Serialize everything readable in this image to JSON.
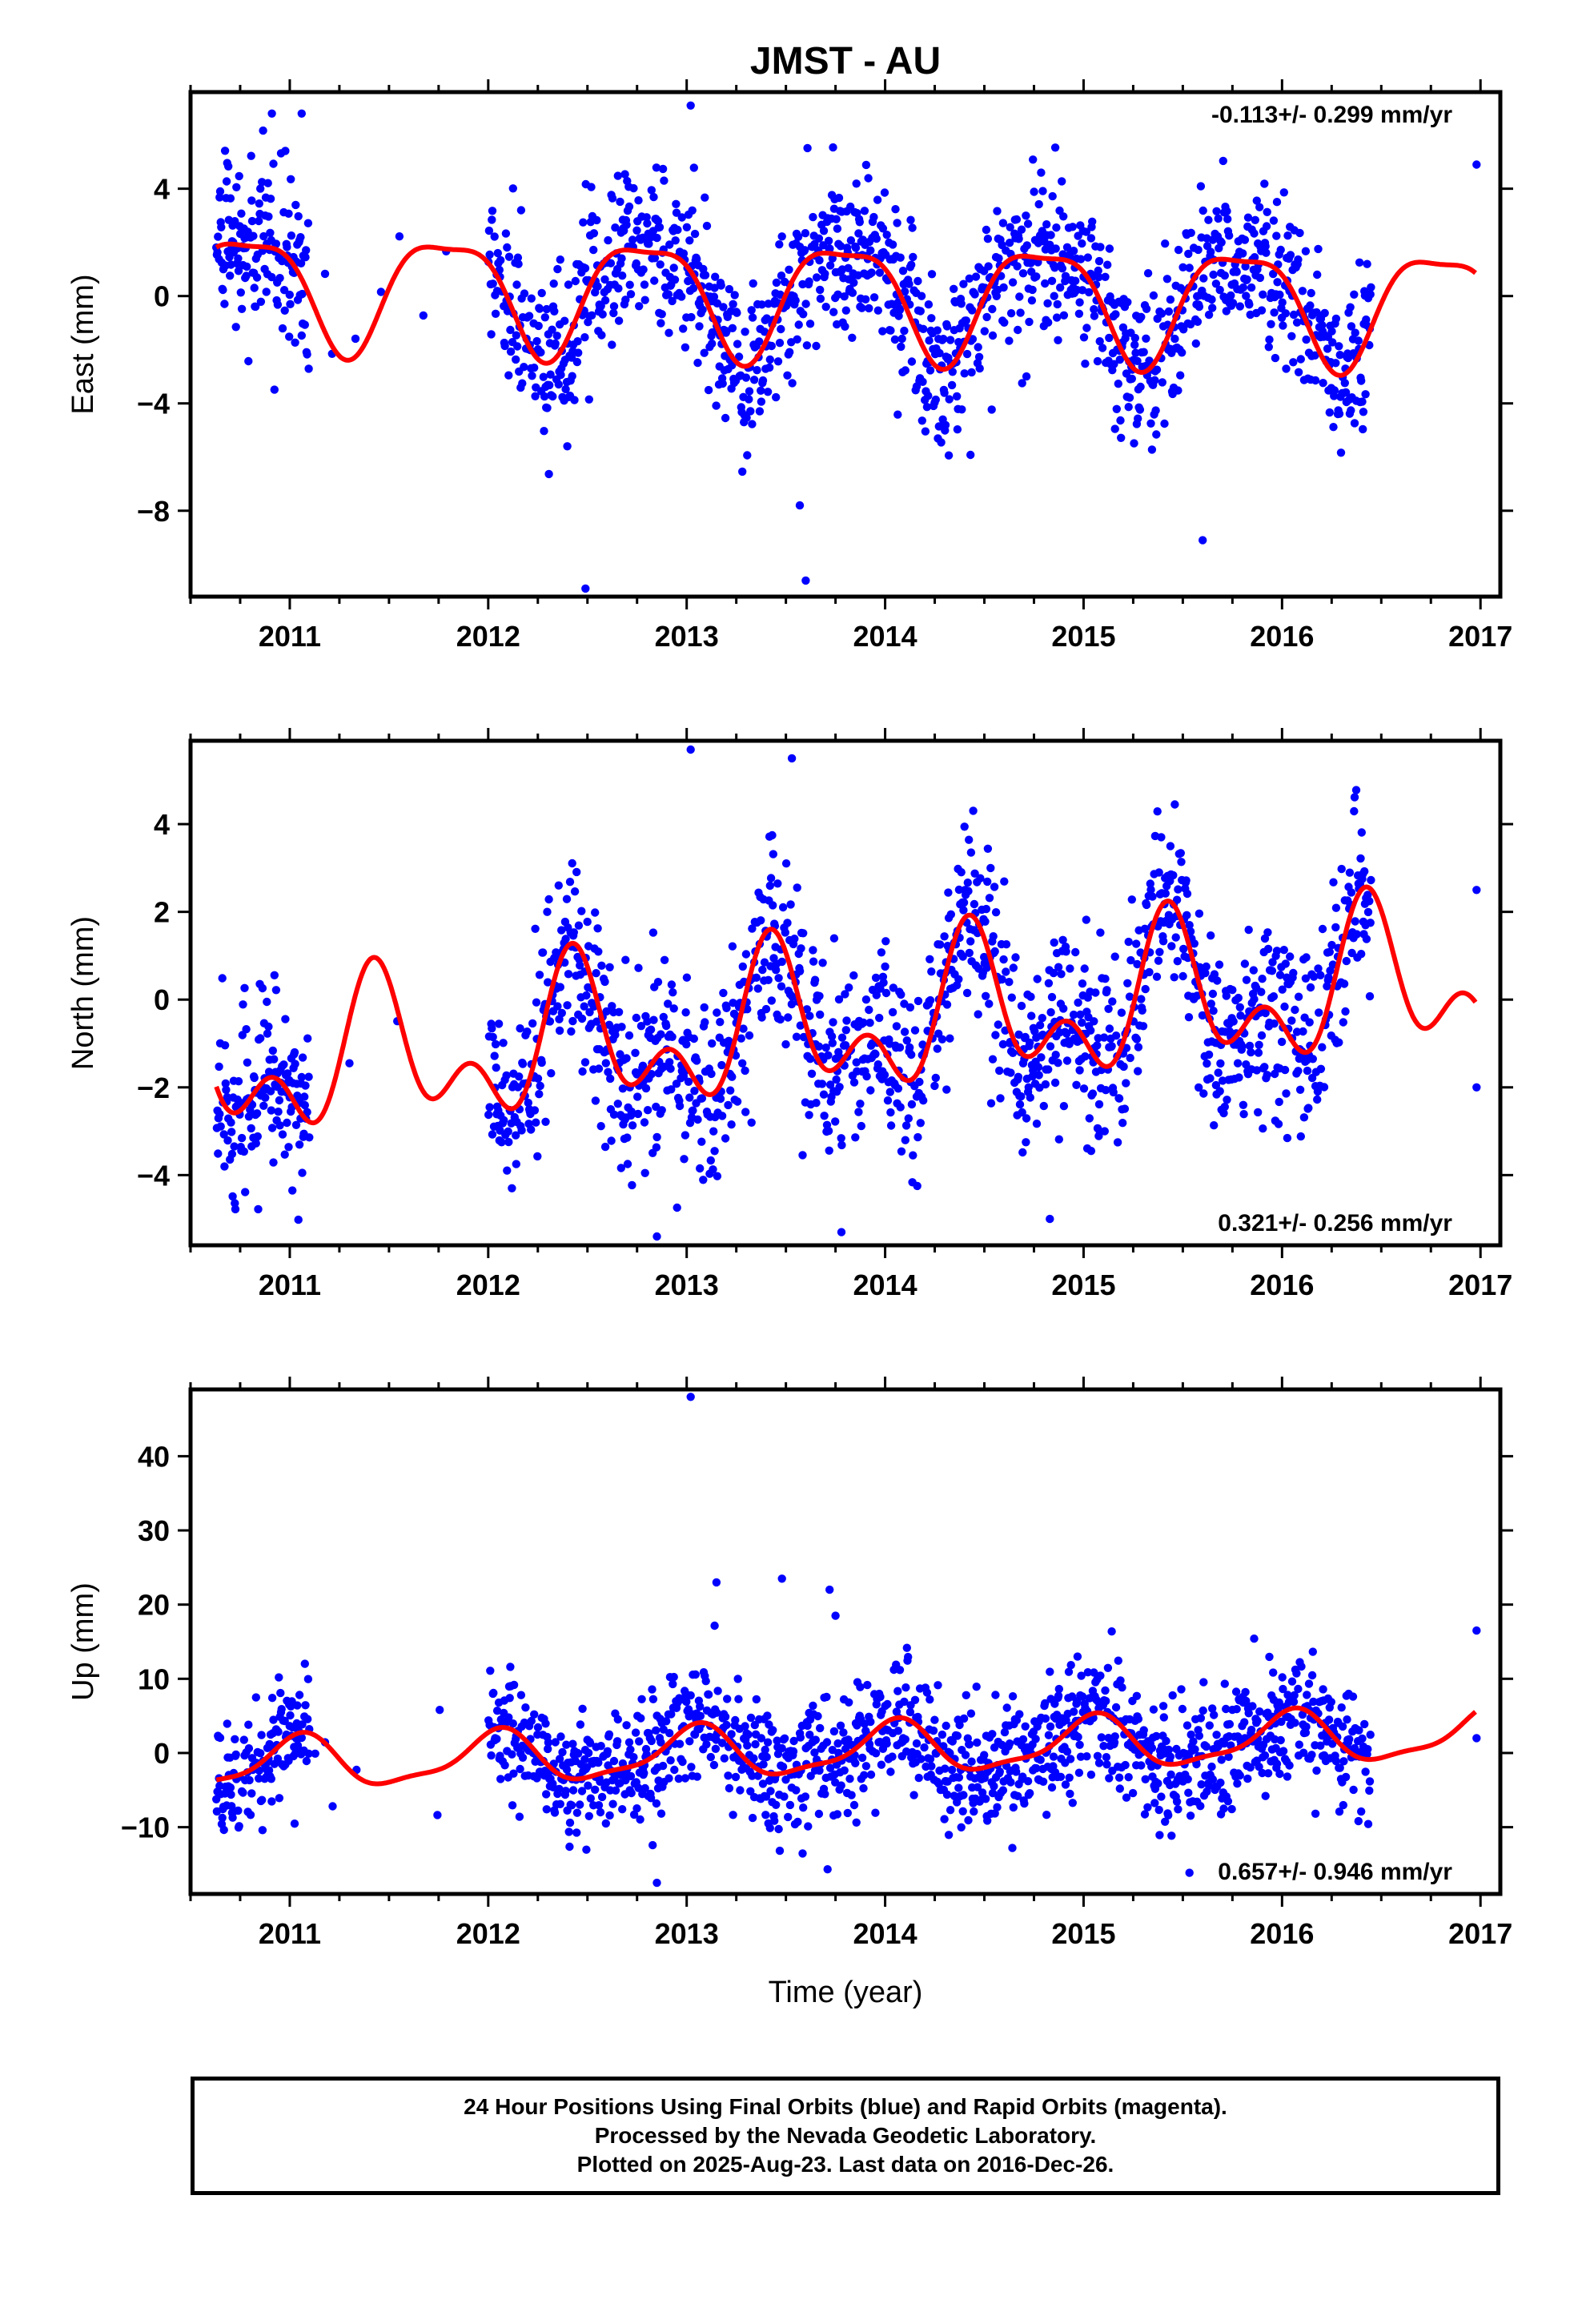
{
  "title": "JMST - AU",
  "footer": {
    "line1": "24 Hour Positions Using Final Orbits (blue) and Rapid Orbits (magenta).",
    "line2": "Processed by the Nevada Geodetic Laboratory.",
    "line3": "Plotted on 2025-Aug-23. Last data on 2016-Dec-26."
  },
  "colors": {
    "points": "#0000ff",
    "model": "#ff0000",
    "frame": "#000000"
  },
  "chart_data": [
    {
      "type": "scatter",
      "ylabel": "East (mm)",
      "rate_label": "-0.113+/- 0.299 mm/yr",
      "rate_position": "top-right",
      "xlim": [
        2010.5,
        2017.1
      ],
      "ylim": [
        -11.2,
        7.6
      ],
      "xticks": [
        2011,
        2012,
        2013,
        2014,
        2015,
        2016,
        2017
      ],
      "yticks": [
        -8,
        -4,
        0,
        4
      ],
      "ytick_labels": [
        "−8",
        "−4",
        "0",
        "4"
      ],
      "model": {
        "rate": -0.113,
        "offset": 0.0,
        "annual_amp": 2.1,
        "annual_phase": 2.9,
        "semiannual_amp": 0.6,
        "semiannual_phase": 1.0
      },
      "scatter_sigma": 1.5,
      "outliers": [
        [
          2013.02,
          7.1
        ],
        [
          2012.49,
          -10.9
        ],
        [
          2013.6,
          -10.6
        ],
        [
          2013.57,
          -7.8
        ],
        [
          2015.6,
          -9.1
        ],
        [
          2016.98,
          4.9
        ],
        [
          2010.91,
          6.8
        ],
        [
          2011.06,
          6.8
        ]
      ]
    },
    {
      "type": "scatter",
      "ylabel": "North (mm)",
      "rate_label": "0.321+/- 0.256 mm/yr",
      "rate_position": "bottom-right",
      "xlim": [
        2010.5,
        2017.1
      ],
      "ylim": [
        -5.6,
        5.9
      ],
      "xticks": [
        2011,
        2012,
        2013,
        2014,
        2015,
        2016,
        2017
      ],
      "yticks": [
        -4,
        -2,
        0,
        2,
        4
      ],
      "ytick_labels": [
        "−4",
        "−2",
        "0",
        "2",
        "4"
      ],
      "model": {
        "rate": 0.321,
        "offset": -0.5,
        "annual_amp": 1.3,
        "annual_phase": -1.2,
        "semiannual_amp": 1.0,
        "semiannual_phase": 2.6
      },
      "scatter_sigma": 1.1,
      "outliers": [
        [
          2013.02,
          5.7
        ],
        [
          2013.53,
          5.5
        ],
        [
          2012.85,
          -5.4
        ],
        [
          2013.78,
          -5.3
        ],
        [
          2014.83,
          -5.0
        ],
        [
          2016.98,
          2.5
        ],
        [
          2016.98,
          -2.0
        ]
      ]
    },
    {
      "type": "scatter",
      "ylabel": "Up (mm)",
      "rate_label": "0.657+/- 0.946 mm/yr",
      "rate_position": "bottom-right",
      "xlim": [
        2010.5,
        2017.1
      ],
      "ylim": [
        -19,
        49
      ],
      "xticks": [
        2011,
        2012,
        2013,
        2014,
        2015,
        2016,
        2017
      ],
      "yticks": [
        -10,
        0,
        10,
        20,
        30,
        40
      ],
      "ytick_labels": [
        "−10",
        "0",
        "10",
        "20",
        "30",
        "40"
      ],
      "xlabel": "Time (year)",
      "model": {
        "rate": 0.657,
        "offset": 0.5,
        "annual_amp": 3.3,
        "annual_phase": 1.3,
        "semiannual_amp": 1.0,
        "semiannual_phase": 0.4
      },
      "scatter_sigma": 4.2,
      "outliers": [
        [
          2013.02,
          48.0
        ],
        [
          2012.85,
          -17.5
        ],
        [
          2013.15,
          23.0
        ],
        [
          2013.48,
          23.5
        ],
        [
          2013.72,
          22.0
        ],
        [
          2013.75,
          18.5
        ],
        [
          2016.98,
          16.5
        ],
        [
          2016.98,
          2.0
        ]
      ]
    }
  ],
  "xtick_labels": [
    "2011",
    "2012",
    "2013",
    "2014",
    "2015",
    "2016",
    "2017"
  ],
  "data_span": {
    "start": 2010.63,
    "end": 2016.45,
    "gap_start": 2011.1,
    "gap_end": 2012.0
  }
}
